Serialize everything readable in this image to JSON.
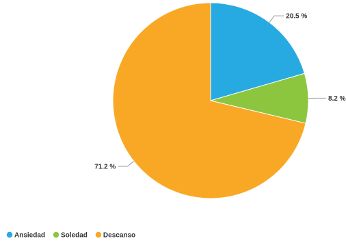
{
  "chart_data": {
    "type": "pie",
    "title": "",
    "categories": [
      "Ansiedad",
      "Soledad",
      "Descanso"
    ],
    "values": [
      20.5,
      8.2,
      71.2
    ],
    "labels": [
      "20.5 %",
      "8.2 %",
      "71.2 %"
    ],
    "colors": [
      "#27aae1",
      "#8cc63f",
      "#f9a825"
    ],
    "legend_position": "bottom-left",
    "start": "top",
    "direction": "clockwise"
  }
}
